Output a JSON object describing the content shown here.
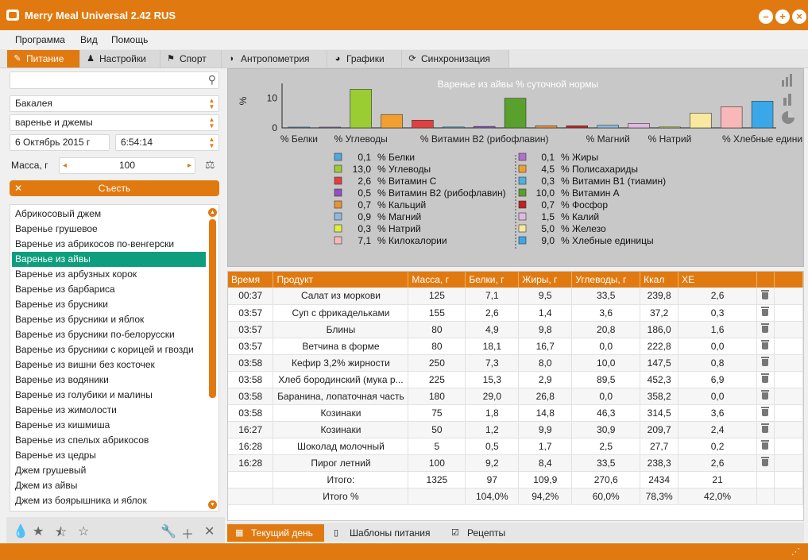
{
  "window": {
    "title": "Merry Meal Universal 2.42 RUS"
  },
  "menu": [
    "Программа",
    "Вид",
    "Помощь"
  ],
  "tabs": [
    "Питание",
    "Настройки",
    "Спорт",
    "Антропометрия",
    "Графики",
    "Синхронизация"
  ],
  "left": {
    "search_placeholder": "",
    "category": "Бакалея",
    "subcategory": "варенье и джемы",
    "date": "6 Октябрь 2015 г",
    "time": "6:54:14",
    "mass_label": "Масса, г",
    "mass_value": "100",
    "eat_button": "Съесть",
    "items": [
      "Абрикосовый джем",
      "Варенье грушевое",
      "Варенье из абрикосов по-венгерски",
      "Варенье из айвы",
      "Варенье из арбузных корок",
      "Варенье из барбариса",
      "Варенье из брусники",
      "Варенье из брусники и яблок",
      "Варенье из брусники по-белорусски",
      "Варенье из брусники с корицей и гвозди",
      "Варенье из вишни без косточек",
      "Варенье из водяники",
      "Варенье из голубики и малины",
      "Варенье из жимолости",
      "Варенье из кишмиша",
      "Варенье из спелых абрикосов",
      "Варенье из цедры",
      "Джем грушевый",
      "Джем из айвы",
      "Джем из боярышника и яблок"
    ],
    "selected_index": 3
  },
  "chart_data": {
    "type": "bar",
    "title": "Варенье из айвы % суточной нормы",
    "ylabel": "%",
    "ylim": [
      0,
      15
    ],
    "yticks": [
      0,
      10
    ],
    "x_tick_labels": [
      "% Белки",
      "% Углеводы",
      "% Витамин B2 (рибофлавин)",
      "% Магний",
      "% Натрий",
      "% Хлебные едини"
    ],
    "categories": [
      "Белки",
      "Жиры",
      "Углеводы",
      "Полисахариды",
      "Витамин C",
      "Витамин B1 (тиамин)",
      "Витамин B2 (рибофлавин)",
      "Витамин A",
      "Кальций",
      "Фосфор",
      "Магний",
      "Калий",
      "Натрий",
      "Железо",
      "Килокалории",
      "Хлебные единицы"
    ],
    "values": [
      0.1,
      0.1,
      13.0,
      4.5,
      2.6,
      0.3,
      0.5,
      10.0,
      0.7,
      0.7,
      0.9,
      1.5,
      0.3,
      5.0,
      7.1,
      9.0
    ],
    "colors": [
      "#4fa8e0",
      "#b070d0",
      "#9acd32",
      "#f0a030",
      "#e04040",
      "#4fb0e0",
      "#9050c0",
      "#5aa02c",
      "#e8923a",
      "#c02020",
      "#8db8e0",
      "#e0b8e0",
      "#dff040",
      "#f8e8a0",
      "#f8b8b8",
      "#3aa8e8"
    ],
    "legend_left": [
      {
        "value": "0,1",
        "label": "% Белки",
        "color": "#4fa8e0"
      },
      {
        "value": "13,0",
        "label": "% Углеводы",
        "color": "#9acd32"
      },
      {
        "value": "2,6",
        "label": "% Витамин C",
        "color": "#e04040"
      },
      {
        "value": "0,5",
        "label": "% Витамин B2 (рибофлавин)",
        "color": "#9050c0"
      },
      {
        "value": "0,7",
        "label": "% Кальций",
        "color": "#e8923a"
      },
      {
        "value": "0,9",
        "label": "% Магний",
        "color": "#8db8e0"
      },
      {
        "value": "0,3",
        "label": "% Натрий",
        "color": "#dff040"
      },
      {
        "value": "7,1",
        "label": "% Килокалории",
        "color": "#f8b8b8"
      }
    ],
    "legend_right": [
      {
        "value": "0,1",
        "label": "% Жиры",
        "color": "#b070d0"
      },
      {
        "value": "4,5",
        "label": "% Полисахариды",
        "color": "#f0a030"
      },
      {
        "value": "0,3",
        "label": "% Витамин B1 (тиамин)",
        "color": "#4fb0e0"
      },
      {
        "value": "10,0",
        "label": "% Витамин A",
        "color": "#5aa02c"
      },
      {
        "value": "0,7",
        "label": "% Фосфор",
        "color": "#c02020"
      },
      {
        "value": "1,5",
        "label": "% Калий",
        "color": "#e0b8e0"
      },
      {
        "value": "5,0",
        "label": "% Железо",
        "color": "#f8e8a0"
      },
      {
        "value": "9,0",
        "label": "% Хлебные единицы",
        "color": "#3aa8e8"
      }
    ]
  },
  "table": {
    "headers": [
      "Время",
      "Продукт",
      "Масса, г",
      "Белки, г",
      "Жиры, г",
      "Углеводы, г",
      "Ккал",
      "ХЕ",
      "",
      ""
    ],
    "rows": [
      [
        "00:37",
        "Салат из моркови",
        "125",
        "7,1",
        "9,5",
        "33,5",
        "239,8",
        "2,6"
      ],
      [
        "03:57",
        "Суп с фрикадельками",
        "155",
        "2,6",
        "1,4",
        "3,6",
        "37,2",
        "0,3"
      ],
      [
        "03:57",
        "Блины",
        "80",
        "4,9",
        "9,8",
        "20,8",
        "186,0",
        "1,6"
      ],
      [
        "03:57",
        "Ветчина в форме",
        "80",
        "18,1",
        "16,7",
        "0,0",
        "222,8",
        "0,0"
      ],
      [
        "03:58",
        "Кефир 3,2% жирности",
        "250",
        "7,3",
        "8,0",
        "10,0",
        "147,5",
        "0,8"
      ],
      [
        "03:58",
        "Хлеб бородинский (мука р...",
        "225",
        "15,3",
        "2,9",
        "89,5",
        "452,3",
        "6,9"
      ],
      [
        "03:58",
        "Баранина, лопаточная часть",
        "180",
        "29,0",
        "26,8",
        "0,0",
        "358,2",
        "0,0"
      ],
      [
        "03:58",
        "Козинаки",
        "75",
        "1,8",
        "14,8",
        "46,3",
        "314,5",
        "3,6"
      ],
      [
        "16:27",
        "Козинаки",
        "50",
        "1,2",
        "9,9",
        "30,9",
        "209,7",
        "2,4"
      ],
      [
        "16:28",
        "Шоколад молочный",
        "5",
        "0,5",
        "1,7",
        "2,5",
        "27,7",
        "0,2"
      ],
      [
        "16:28",
        "Пирог летний",
        "100",
        "9,2",
        "8,4",
        "33,5",
        "238,3",
        "2,6"
      ]
    ],
    "total_row": [
      "",
      "Итого:",
      "1325",
      "97",
      "109,9",
      "270,6",
      "2434",
      "21"
    ],
    "percent_row": [
      "",
      "Итого %",
      "",
      "104,0%",
      "94,2%",
      "60,0%",
      "78,3%",
      "42,0%"
    ]
  },
  "bottom_tabs": [
    "Текущий день",
    "Шаблоны питания",
    "Рецепты"
  ]
}
